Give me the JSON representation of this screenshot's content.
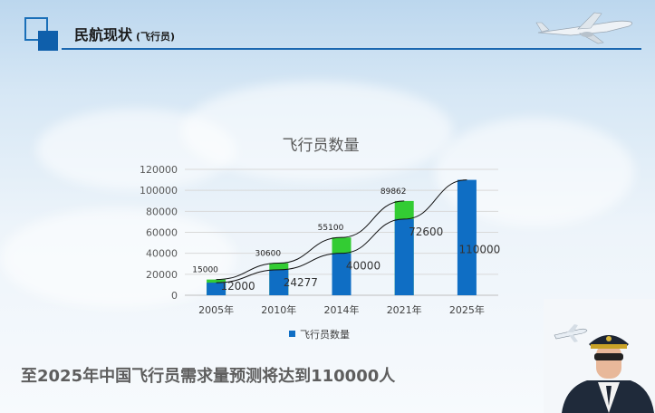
{
  "header": {
    "title": "民航现状",
    "subtitle": "(飞行员)"
  },
  "chart_data": {
    "type": "bar",
    "title": "飞行员数量",
    "categories": [
      "2005年",
      "2010年",
      "2014年",
      "2021年",
      "2025年"
    ],
    "series": [
      {
        "name": "飞行员数量",
        "values": [
          12000,
          24277,
          40000,
          72600,
          110000
        ],
        "color": "#0f6ec4"
      }
    ],
    "stacked_top_values": [
      15000,
      30600,
      55100,
      89862,
      null
    ],
    "stacked_top_color": "#33cc33",
    "ylim": [
      0,
      120000
    ],
    "yticks": [
      0,
      20000,
      40000,
      60000,
      80000,
      100000,
      120000
    ],
    "ytick_labels": [
      "0",
      "20000",
      "40000",
      "60000",
      "80000",
      "100000",
      "120000"
    ],
    "value_labels": [
      "12000",
      "24277",
      "40000",
      "72600",
      "110000"
    ],
    "top_labels": [
      "15000",
      "30600",
      "55100",
      "89862",
      ""
    ],
    "trendlines": true,
    "grid": true,
    "legend": "bottom"
  },
  "footer": {
    "text": "至2025年中国飞行员需求量预测将达到110000人"
  }
}
